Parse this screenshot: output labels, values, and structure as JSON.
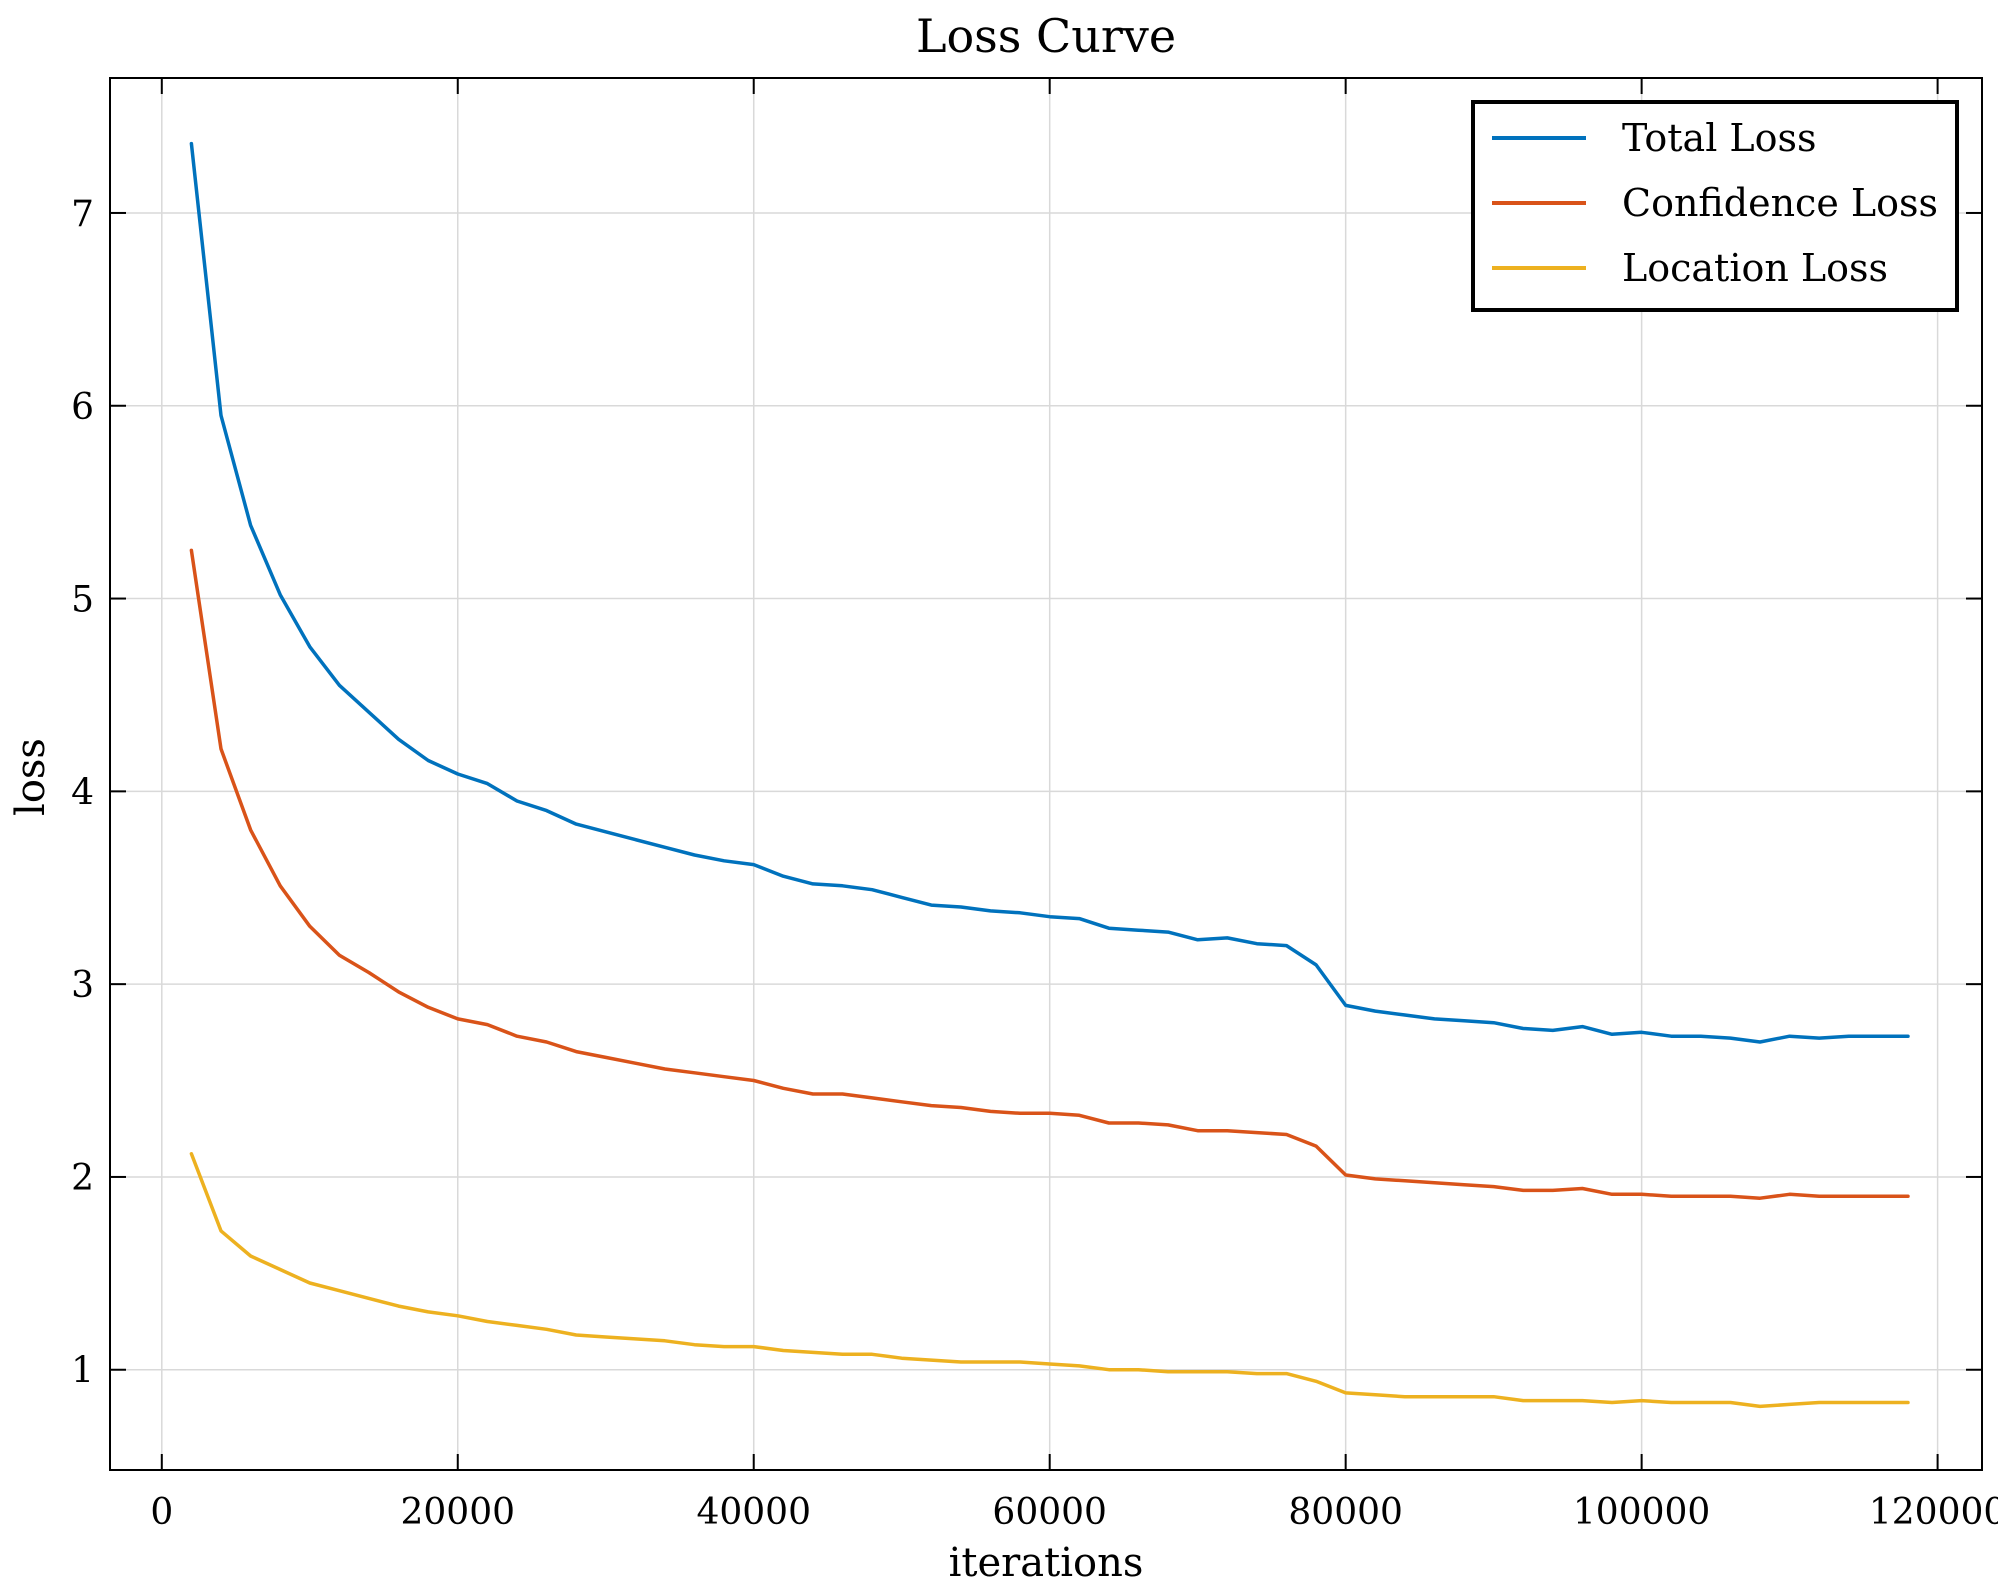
{
  "chart_data": {
    "type": "line",
    "title": "Loss Curve",
    "xlabel": "iterations",
    "ylabel": "loss",
    "xlim": [
      -3500,
      123000
    ],
    "ylim": [
      0.48,
      7.7
    ],
    "x_ticks": [
      0,
      20000,
      40000,
      60000,
      80000,
      100000,
      120000
    ],
    "y_ticks": [
      1,
      2,
      3,
      4,
      5,
      6,
      7
    ],
    "grid": true,
    "legend_position": "top-right",
    "x": [
      2000,
      4000,
      6000,
      8000,
      10000,
      12000,
      14000,
      16000,
      18000,
      20000,
      22000,
      24000,
      26000,
      28000,
      30000,
      32000,
      34000,
      36000,
      38000,
      40000,
      42000,
      44000,
      46000,
      48000,
      50000,
      52000,
      54000,
      56000,
      58000,
      60000,
      62000,
      64000,
      66000,
      68000,
      70000,
      72000,
      74000,
      76000,
      78000,
      80000,
      82000,
      84000,
      86000,
      88000,
      90000,
      92000,
      94000,
      96000,
      98000,
      100000,
      102000,
      104000,
      106000,
      108000,
      110000,
      112000,
      114000,
      116000,
      118000
    ],
    "series": [
      {
        "name": "Total Loss",
        "color": "#0072bd",
        "values": [
          7.36,
          5.95,
          5.38,
          5.02,
          4.75,
          4.55,
          4.41,
          4.27,
          4.16,
          4.09,
          4.04,
          3.95,
          3.9,
          3.83,
          3.79,
          3.75,
          3.71,
          3.67,
          3.64,
          3.62,
          3.56,
          3.52,
          3.51,
          3.49,
          3.45,
          3.41,
          3.4,
          3.38,
          3.37,
          3.35,
          3.34,
          3.29,
          3.28,
          3.27,
          3.23,
          3.24,
          3.21,
          3.2,
          3.1,
          2.89,
          2.86,
          2.84,
          2.82,
          2.81,
          2.8,
          2.77,
          2.76,
          2.78,
          2.74,
          2.75,
          2.73,
          2.73,
          2.72,
          2.7,
          2.73,
          2.72,
          2.73,
          2.73,
          2.73
        ]
      },
      {
        "name": "Confidence Loss",
        "color": "#d95319",
        "values": [
          5.25,
          4.22,
          3.8,
          3.51,
          3.3,
          3.15,
          3.06,
          2.96,
          2.88,
          2.82,
          2.79,
          2.73,
          2.7,
          2.65,
          2.62,
          2.59,
          2.56,
          2.54,
          2.52,
          2.5,
          2.46,
          2.43,
          2.43,
          2.41,
          2.39,
          2.37,
          2.36,
          2.34,
          2.33,
          2.33,
          2.32,
          2.28,
          2.28,
          2.27,
          2.24,
          2.24,
          2.23,
          2.22,
          2.16,
          2.01,
          1.99,
          1.98,
          1.97,
          1.96,
          1.95,
          1.93,
          1.93,
          1.94,
          1.91,
          1.91,
          1.9,
          1.9,
          1.9,
          1.89,
          1.91,
          1.9,
          1.9,
          1.9,
          1.9
        ]
      },
      {
        "name": "Location Loss",
        "color": "#edb120",
        "values": [
          2.12,
          1.72,
          1.59,
          1.52,
          1.45,
          1.41,
          1.37,
          1.33,
          1.3,
          1.28,
          1.25,
          1.23,
          1.21,
          1.18,
          1.17,
          1.16,
          1.15,
          1.13,
          1.12,
          1.12,
          1.1,
          1.09,
          1.08,
          1.08,
          1.06,
          1.05,
          1.04,
          1.04,
          1.04,
          1.03,
          1.02,
          1.0,
          1.0,
          0.99,
          0.99,
          0.99,
          0.98,
          0.98,
          0.94,
          0.88,
          0.87,
          0.86,
          0.86,
          0.86,
          0.86,
          0.84,
          0.84,
          0.84,
          0.83,
          0.84,
          0.83,
          0.83,
          0.83,
          0.81,
          0.82,
          0.83,
          0.83,
          0.83,
          0.83
        ]
      }
    ]
  }
}
